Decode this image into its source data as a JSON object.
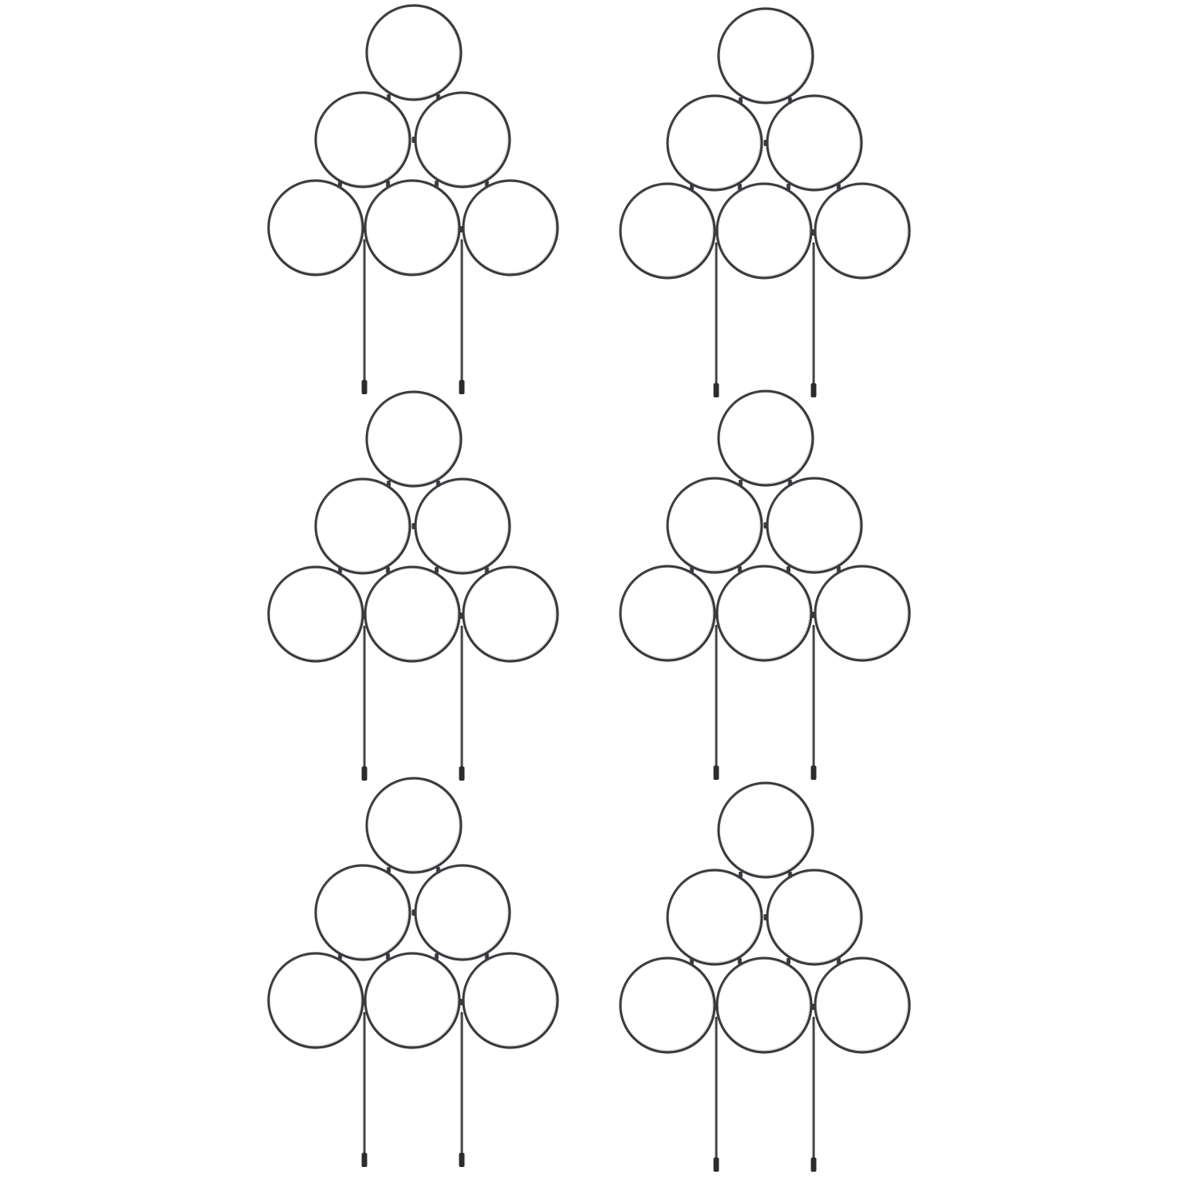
{
  "product": {
    "name": "circular-ring-plant-trellis",
    "count": 6,
    "rings_per_trellis": 6,
    "ring_rows": [
      1,
      2,
      3
    ],
    "stakes_per_trellis": 2
  },
  "colors": {
    "background": "#ffffff",
    "metal": "#3a393d",
    "metal_highlight": "#8c8a90",
    "cap": "#2c2b2f"
  }
}
